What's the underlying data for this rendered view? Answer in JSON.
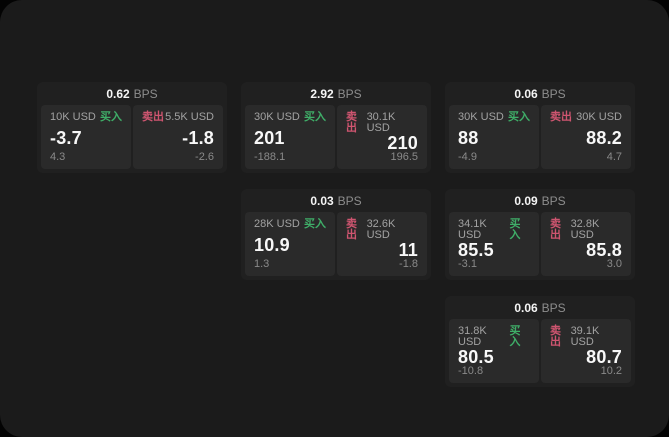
{
  "labels": {
    "bps_suffix": "BPS",
    "buy": "买入",
    "sell": "卖出"
  },
  "colors": {
    "buy_green": "#3fae68",
    "sell_red": "#cf5570",
    "window_bg": "#1b1b1b",
    "card_bg": "#202020",
    "panel_bg": "#2a2a2a"
  },
  "cards": [
    {
      "grid": {
        "col": 1,
        "row": 1
      },
      "bps": "0.62",
      "buy": {
        "amount": "10K USD",
        "price": "-3.7",
        "delta": "4.3"
      },
      "sell": {
        "amount": "5.5K USD",
        "price": "-1.8",
        "delta": "-2.6"
      }
    },
    {
      "grid": {
        "col": 2,
        "row": 1
      },
      "bps": "2.92",
      "buy": {
        "amount": "30K USD",
        "price": "201",
        "delta": "-188.1"
      },
      "sell": {
        "amount": "30.1K USD",
        "price": "210",
        "delta": "196.5"
      }
    },
    {
      "grid": {
        "col": 3,
        "row": 1
      },
      "bps": "0.06",
      "buy": {
        "amount": "30K USD",
        "price": "88",
        "delta": "-4.9"
      },
      "sell": {
        "amount": "30K USD",
        "price": "88.2",
        "delta": "4.7"
      }
    },
    {
      "grid": {
        "col": 2,
        "row": 2
      },
      "bps": "0.03",
      "buy": {
        "amount": "28K USD",
        "price": "10.9",
        "delta": "1.3"
      },
      "sell": {
        "amount": "32.6K USD",
        "price": "11",
        "delta": "-1.8"
      }
    },
    {
      "grid": {
        "col": 3,
        "row": 2
      },
      "bps": "0.09",
      "buy": {
        "amount": "34.1K USD",
        "price": "85.5",
        "delta": "-3.1"
      },
      "sell": {
        "amount": "32.8K USD",
        "price": "85.8",
        "delta": "3.0"
      }
    },
    {
      "grid": {
        "col": 3,
        "row": 3
      },
      "bps": "0.06",
      "buy": {
        "amount": "31.8K USD",
        "price": "80.5",
        "delta": "-10.8"
      },
      "sell": {
        "amount": "39.1K USD",
        "price": "80.7",
        "delta": "10.2"
      }
    }
  ]
}
